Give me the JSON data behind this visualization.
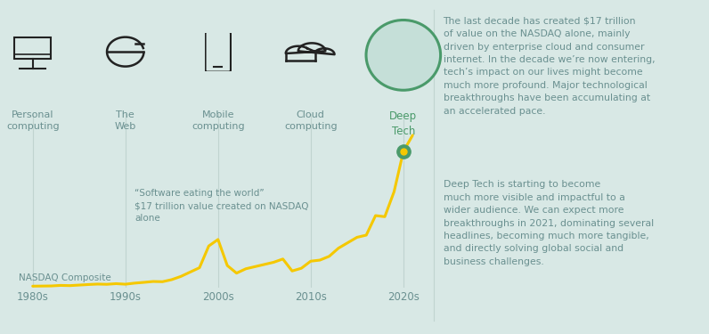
{
  "background_color": "#d8e8e5",
  "line_color": "#f5c800",
  "line_width": 2.2,
  "dot_outer_color": "#4a9a6a",
  "dot_inner_color": "#f5c800",
  "text_color": "#6a9090",
  "icon_color": "#222222",
  "divider_color": "#c0d4d0",
  "deep_circle_fill": "#c5dfd8",
  "deep_circle_edge": "#4a9a6a",
  "nasdaq_label": "NASDAQ Composite",
  "annotation_text": "“Software eating the world”\n$17 trillion value created on NASDAQ\nalone",
  "xlabel_ticks": [
    "1980s",
    "1990s",
    "2000s",
    "2010s",
    "2020s"
  ],
  "era_labels": [
    "Personal\ncomputing",
    "The\nWeb",
    "Mobile\ncomputing",
    "Cloud\ncomputing",
    "Deep\nTech"
  ],
  "paragraph1": "The last decade has created $17 trillion\nof value on the NASDAQ alone, mainly\ndriven by enterprise cloud and consumer\ninternet. In the decade we’re now entering,\ntech’s impact on our lives might become\nmuch more profound. Major technological\nbreakthroughs have been accumulating at\nan accelerated pace.",
  "paragraph2": "Deep Tech is starting to become\nmuch more visible and impactful to a\nwider audience. We can expect more\nbreakthroughs in 2021, dominating several\nheadlines, becoming much more tangible,\nand directly solving global social and\nbusiness challenges.",
  "nasdaq_x": [
    1980,
    1981,
    1982,
    1983,
    1984,
    1985,
    1986,
    1987,
    1988,
    1989,
    1990,
    1991,
    1992,
    1993,
    1994,
    1995,
    1996,
    1997,
    1998,
    1999,
    2000,
    2001,
    2002,
    2003,
    2004,
    2005,
    2006,
    2007,
    2008,
    2009,
    2010,
    2011,
    2012,
    2013,
    2014,
    2015,
    2016,
    2017,
    2018,
    2019,
    2020,
    2021
  ],
  "nasdaq_y": [
    100,
    110,
    120,
    170,
    150,
    200,
    250,
    290,
    270,
    330,
    280,
    380,
    450,
    530,
    510,
    700,
    1000,
    1400,
    1800,
    3800,
    4400,
    2000,
    1300,
    1700,
    1900,
    2100,
    2300,
    2600,
    1500,
    1750,
    2400,
    2500,
    2850,
    3600,
    4100,
    4600,
    4800,
    6600,
    6500,
    8800,
    12500,
    14000
  ],
  "chart_xlim": [
    1978,
    2022
  ],
  "chart_ylim": [
    0,
    16000
  ],
  "era_year_x": [
    1980,
    1990,
    2000,
    2010,
    2020
  ]
}
